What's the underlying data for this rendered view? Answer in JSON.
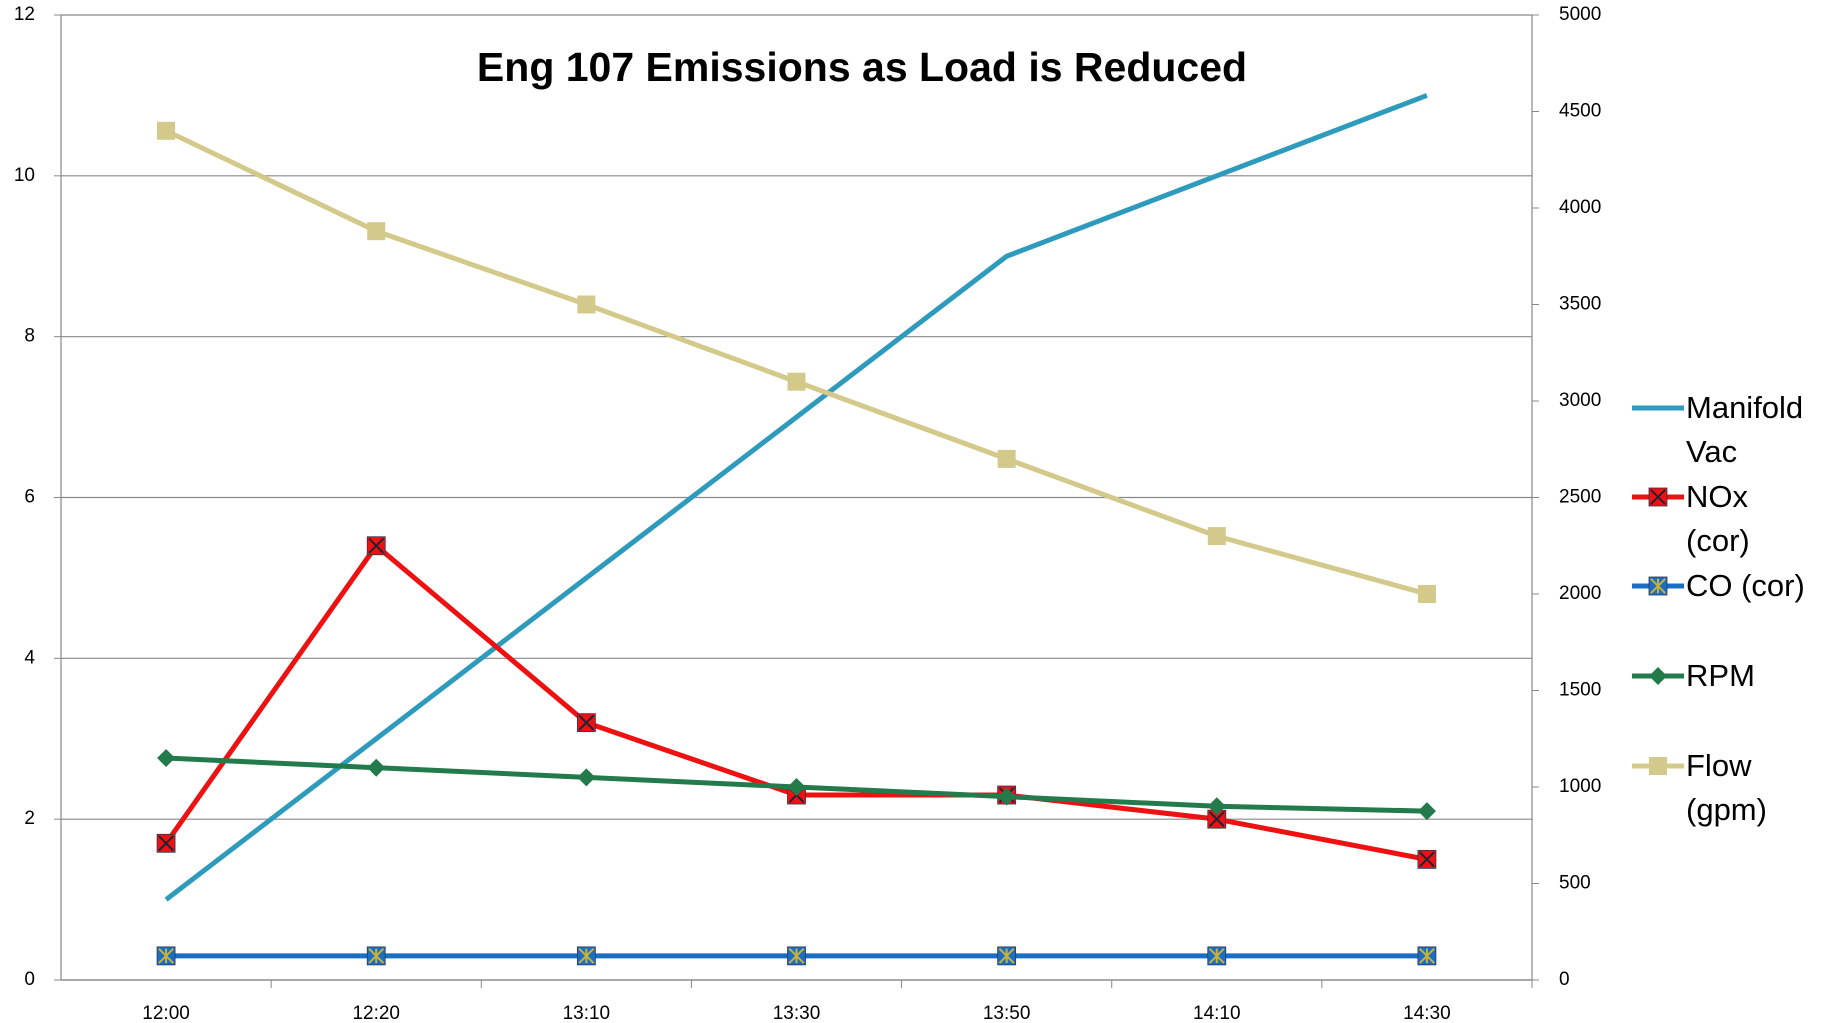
{
  "chart_data": {
    "type": "line",
    "title": "Eng 107 Emissions as Load is Reduced",
    "categories": [
      "12:00",
      "12:20",
      "13:10",
      "13:30",
      "13:50",
      "14:10",
      "14:30"
    ],
    "ylim": [
      0,
      12
    ],
    "yticks": [
      0,
      2,
      4,
      6,
      8,
      10,
      12
    ],
    "y2lim": [
      0,
      5000
    ],
    "y2ticks": [
      0,
      500,
      1000,
      1500,
      2000,
      2500,
      3000,
      3500,
      4000,
      4500,
      5000
    ],
    "grid": true,
    "legend": "right",
    "series": [
      {
        "name": "Manifold Vac",
        "color": "#2e9bbd",
        "marker": "none",
        "values": [
          1,
          3,
          5,
          7,
          9,
          10,
          11
        ]
      },
      {
        "name": "NOx (cor)",
        "color": "#ee1111",
        "marker": "square-x",
        "values": [
          1.7,
          5.4,
          3.2,
          2.3,
          2.3,
          2.0,
          1.5
        ]
      },
      {
        "name": "CO (cor)",
        "color": "#1a6fc4",
        "marker": "square-star",
        "values": [
          0.3,
          0.3,
          0.3,
          0.3,
          0.3,
          0.3,
          0.3
        ]
      },
      {
        "name": "RPM",
        "color": "#237a4b",
        "marker": "diamond",
        "axis": "y2",
        "values": [
          1150,
          1100,
          1050,
          1000,
          950,
          900,
          875
        ]
      },
      {
        "name": "Flow (gpm)",
        "color": "#d2c98a",
        "marker": "square",
        "axis": "y2",
        "values": [
          4400,
          3880,
          3500,
          3100,
          2700,
          2300,
          2000
        ]
      }
    ]
  }
}
